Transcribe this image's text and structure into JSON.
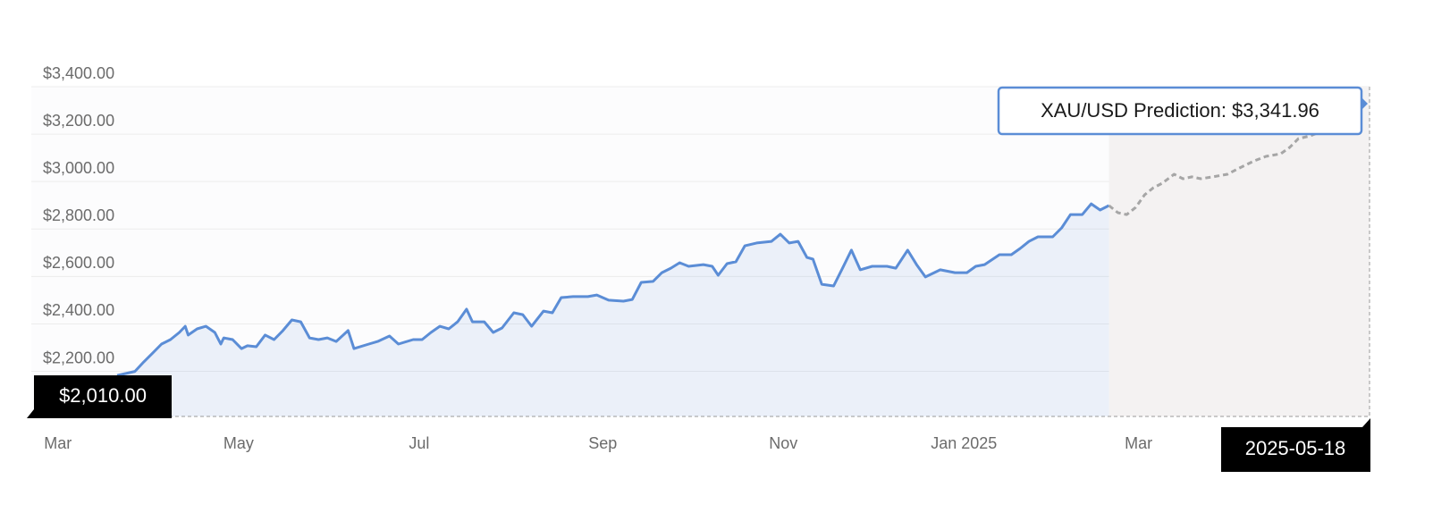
{
  "chart_data": {
    "type": "line",
    "xlim": [
      -9,
      443
    ],
    "xticks": [
      {
        "value": 0,
        "label": "Mar"
      },
      {
        "value": 61,
        "label": "May"
      },
      {
        "value": 122,
        "label": "Jul"
      },
      {
        "value": 184,
        "label": "Sep"
      },
      {
        "value": 245,
        "label": "Nov"
      },
      {
        "value": 306,
        "label": "Jan 2025"
      },
      {
        "value": 365,
        "label": "Mar"
      }
    ],
    "ylim": [
      2010,
      3400
    ],
    "yticks": [
      {
        "value": 2200,
        "label": "$2,200.00"
      },
      {
        "value": 2400,
        "label": "$2,400.00"
      },
      {
        "value": 2600,
        "label": "$2,600.00"
      },
      {
        "value": 2800,
        "label": "$2,800.00"
      },
      {
        "value": 3000,
        "label": "$3,000.00"
      },
      {
        "value": 3200,
        "label": "$3,200.00"
      },
      {
        "value": 3400,
        "label": "$3,400.00"
      }
    ],
    "grid": true,
    "series": [
      {
        "color": "#5b8dd6",
        "dashed": false,
        "area": true,
        "x": [
          20,
          26,
          29,
          32,
          35,
          38,
          41,
          43,
          44,
          47,
          50,
          53,
          55,
          56,
          59,
          62,
          64,
          67,
          70,
          73,
          76,
          79,
          82,
          85,
          88,
          91,
          94,
          98,
          100,
          105,
          108,
          112,
          115,
          120,
          123,
          126,
          129,
          132,
          135,
          138,
          140,
          144,
          147,
          150,
          154,
          157,
          160,
          164,
          167,
          170,
          174,
          179,
          182,
          186,
          191,
          194,
          197,
          201,
          204,
          207,
          210,
          213,
          218,
          221,
          223,
          226,
          229,
          232,
          236,
          241,
          244,
          247,
          250,
          253,
          255,
          258,
          262,
          265,
          268,
          271,
          275,
          280,
          283,
          287,
          290,
          293,
          298,
          303,
          307,
          310,
          313,
          318,
          322,
          325,
          328,
          331,
          336,
          339,
          342,
          346,
          349,
          352,
          355
        ],
        "values": [
          2183,
          2200,
          2240,
          2277,
          2315,
          2334,
          2364,
          2390,
          2353,
          2379,
          2390,
          2364,
          2315,
          2341,
          2334,
          2296,
          2308,
          2304,
          2353,
          2334,
          2372,
          2417,
          2409,
          2341,
          2334,
          2341,
          2326,
          2372,
          2296,
          2315,
          2326,
          2349,
          2315,
          2334,
          2334,
          2364,
          2390,
          2379,
          2409,
          2462,
          2409,
          2409,
          2364,
          2383,
          2447,
          2439,
          2390,
          2454,
          2447,
          2511,
          2515,
          2515,
          2522,
          2500,
          2496,
          2503,
          2575,
          2579,
          2616,
          2635,
          2658,
          2643,
          2650,
          2643,
          2605,
          2654,
          2662,
          2729,
          2741,
          2748,
          2778,
          2741,
          2748,
          2680,
          2673,
          2567,
          2560,
          2635,
          2711,
          2628,
          2643,
          2643,
          2635,
          2711,
          2650,
          2598,
          2628,
          2616,
          2616,
          2643,
          2650,
          2692,
          2692,
          2718,
          2748,
          2767,
          2767,
          2805,
          2861,
          2861,
          2906,
          2880,
          2899
        ]
      },
      {
        "color": "#a6a6a6",
        "dashed": true,
        "area": false,
        "x": [
          355,
          358,
          361,
          364,
          367,
          370,
          373,
          377,
          380,
          383,
          386,
          390,
          395,
          399,
          404,
          408,
          413,
          416,
          419,
          423,
          426
        ],
        "values": [
          2899,
          2869,
          2861,
          2891,
          2944,
          2974,
          2993,
          3031,
          3012,
          3020,
          3012,
          3020,
          3031,
          3057,
          3087,
          3106,
          3117,
          3144,
          3181,
          3193,
          3208
        ]
      }
    ],
    "low_label": "$2,010.00",
    "end_date_label": "2025-05-18",
    "tooltip": "XAU/USD Prediction: $3,341.96"
  }
}
